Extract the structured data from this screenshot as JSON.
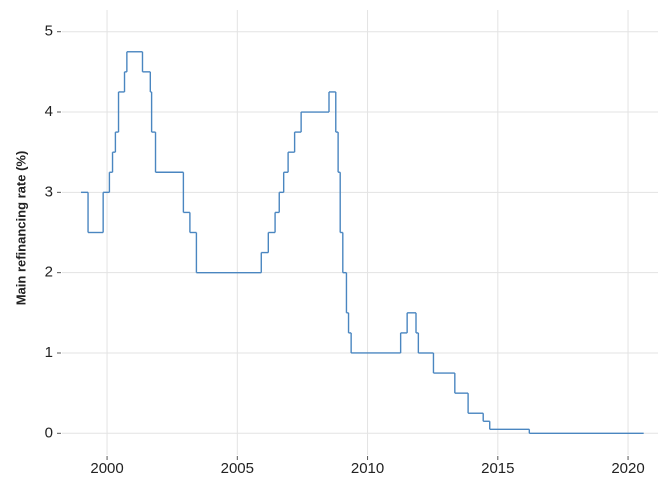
{
  "chart_data": {
    "type": "step",
    "y_label": "Main refinancing rate (%)",
    "series": [
      {
        "color": "#4a86c0",
        "x": [
          1999.0,
          1999.27,
          1999.85,
          2000.09,
          2000.21,
          2000.32,
          2000.44,
          2000.67,
          2000.76,
          2001.36,
          2001.66,
          2001.71,
          2001.86,
          2002.93,
          2003.18,
          2003.43,
          2005.92,
          2006.19,
          2006.45,
          2006.61,
          2006.78,
          2006.95,
          2007.2,
          2007.45,
          2008.52,
          2008.78,
          2008.87,
          2008.95,
          2009.05,
          2009.19,
          2009.27,
          2009.37,
          2011.27,
          2011.52,
          2011.86,
          2011.95,
          2012.53,
          2013.35,
          2013.86,
          2014.44,
          2014.69,
          2016.21,
          2020.6
        ],
        "values": [
          3.0,
          2.5,
          3.0,
          3.25,
          3.5,
          3.75,
          4.25,
          4.5,
          4.75,
          4.5,
          4.25,
          3.75,
          3.25,
          2.75,
          2.5,
          2.0,
          2.25,
          2.5,
          2.75,
          3.0,
          3.25,
          3.5,
          3.75,
          4.0,
          4.25,
          3.75,
          3.25,
          2.5,
          2.0,
          1.5,
          1.25,
          1.0,
          1.25,
          1.5,
          1.25,
          1.0,
          0.75,
          0.5,
          0.25,
          0.15,
          0.05,
          0.0,
          0.0
        ]
      }
    ],
    "xlim": [
      1998.27,
      2021.15
    ],
    "xticks": [
      2000,
      2005,
      2010,
      2015,
      2020
    ],
    "ylim": [
      -0.27,
      5.27
    ],
    "yticks": [
      0,
      1,
      2,
      3,
      4,
      5
    ],
    "grid": true
  }
}
